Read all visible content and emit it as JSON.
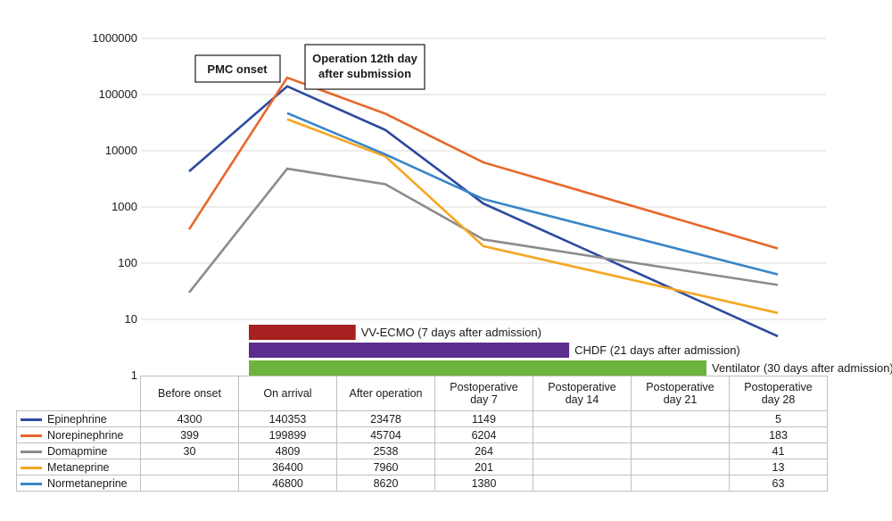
{
  "chart_data": {
    "type": "line",
    "yscale": "log",
    "ylim": [
      1,
      1000000
    ],
    "yticks": [
      "1000000",
      "100000",
      "10000",
      "1000",
      "100",
      "10",
      "1"
    ],
    "grid": true,
    "categories": [
      "Before onset",
      "On arrival",
      "After operation",
      "Postoperative day 7",
      "Postoperative day 14",
      "Postoperative day 21",
      "Postoperative day 28"
    ],
    "series": [
      {
        "name": "Epinephrine",
        "color": "#2B4A9E",
        "values": [
          4300,
          140353,
          23478,
          1149,
          null,
          null,
          5
        ],
        "labels": [
          "4300",
          "140353",
          "23478",
          "1149",
          "",
          "",
          "5"
        ]
      },
      {
        "name": "Norepinephrine",
        "color": "#E8672A",
        "values": [
          399,
          199899,
          45704,
          6204,
          null,
          null,
          183
        ],
        "labels": [
          "399",
          "199899",
          "45704",
          "6204",
          "",
          "",
          "183"
        ]
      },
      {
        "name": "Domapmine",
        "color": "#8C8C8C",
        "values": [
          30,
          4809,
          2538,
          264,
          null,
          null,
          41
        ],
        "labels": [
          "30",
          "4809",
          "2538",
          "264",
          "",
          "",
          "41"
        ]
      },
      {
        "name": "Metaneprine",
        "color": "#F5A623",
        "values": [
          null,
          36400,
          7960,
          201,
          null,
          null,
          13
        ],
        "labels": [
          "",
          "36400",
          "7960",
          "201",
          "",
          "",
          "13"
        ]
      },
      {
        "name": "Normetaneprine",
        "color": "#3A86C8",
        "values": [
          null,
          46800,
          8620,
          1380,
          null,
          null,
          63
        ],
        "labels": [
          "",
          "46800",
          "8620",
          "1380",
          "",
          "",
          "63"
        ]
      }
    ],
    "annotations": [
      {
        "text": "PMC onset"
      },
      {
        "text_lines": [
          "Operation 12th day",
          "after submission"
        ]
      }
    ],
    "timeline_bars": [
      {
        "label": "VV-ECMO (7 days after admission)",
        "color": "#A81F1F",
        "start_day": 0,
        "days": 7
      },
      {
        "label": "CHDF (21 days after admission)",
        "color": "#5B2D8E",
        "start_day": 0,
        "days": 21
      },
      {
        "label": "Ventilator (30 days after admission)",
        "color": "#6DB33F",
        "start_day": 0,
        "days": 30
      }
    ],
    "table_headers": [
      "Before onset",
      "On arrival",
      "After operation",
      "Postoperative\nday 7",
      "Postoperative\nday 14",
      "Postoperative\nday 21",
      "Postoperative\nday 28"
    ]
  }
}
